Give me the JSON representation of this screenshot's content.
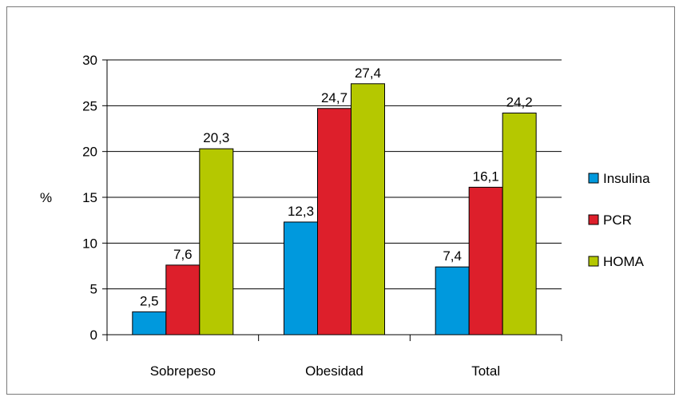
{
  "chart_data": {
    "type": "bar",
    "title": "",
    "xlabel": "",
    "ylabel": "%",
    "ylim": [
      0,
      30
    ],
    "yticks": [
      "0",
      "5",
      "10",
      "15",
      "20",
      "25",
      "30"
    ],
    "categories": [
      "Sobrepeso",
      "Obesidad",
      "Total"
    ],
    "series": [
      {
        "name": "Insulina",
        "values": [
          2.5,
          12.3,
          7.4
        ],
        "labels": [
          "2,5",
          "12,3",
          "7,4"
        ],
        "color": "#0099dd"
      },
      {
        "name": "PCR",
        "values": [
          7.6,
          24.7,
          16.1
        ],
        "labels": [
          "7,6",
          "24,7",
          "16,1"
        ],
        "color": "#dd1f2b"
      },
      {
        "name": "HOMA",
        "values": [
          20.3,
          27.4,
          24.2
        ],
        "labels": [
          "20,3",
          "27,4",
          "24,2"
        ],
        "color": "#b5c800"
      }
    ],
    "grid": true,
    "legend": "right"
  }
}
